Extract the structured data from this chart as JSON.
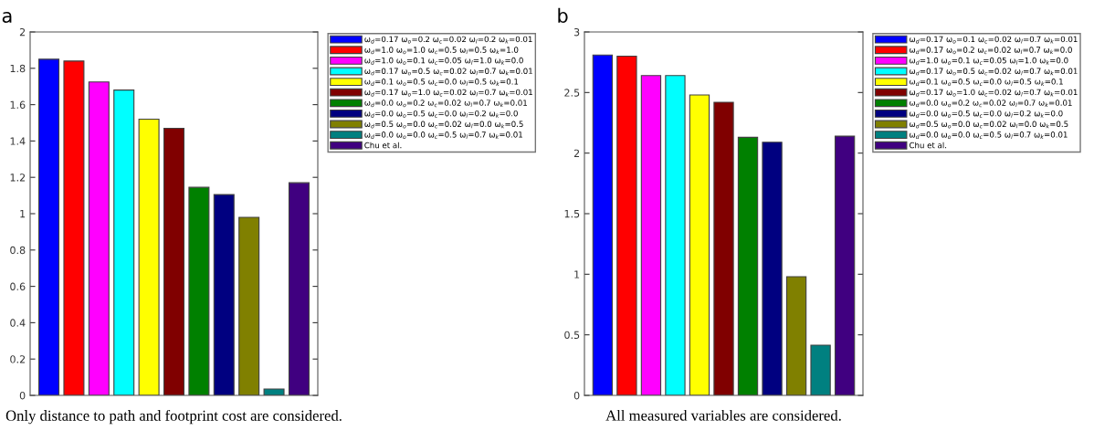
{
  "chart_data": [
    {
      "type": "bar",
      "title": "a",
      "categories": [
        null,
        null,
        null,
        null,
        null,
        null,
        null,
        null,
        null,
        null,
        null
      ],
      "series": [
        {
          "name": "ω$_{d}$=0.17 ω$_{o}$=0.2 ω$_{c}$=0.02 ω$_{l}$=0.2 ω$_{k}$=0.01",
          "color": "#0000ff",
          "values": [
            1.85,
            null,
            null,
            null,
            null,
            null,
            null,
            null,
            null,
            null,
            null
          ]
        },
        {
          "name": "ω$_{d}$=1.0 ω$_{o}$=1.0 ω$_{c}$=0.5 ω$_{l}$=0.5 ω$_{k}$=1.0",
          "color": "#ff0000",
          "values": [
            null,
            1.84,
            null,
            null,
            null,
            null,
            null,
            null,
            null,
            null,
            null
          ]
        },
        {
          "name": "ω$_{d}$=1.0 ω$_{o}$=0.1 ω$_{c}$=0.05 ω$_{l}$=1.0 ω$_{k}$=0.0",
          "color": "#ff00ff",
          "values": [
            null,
            null,
            1.725,
            null,
            null,
            null,
            null,
            null,
            null,
            null,
            null
          ]
        },
        {
          "name": "ω$_{d}$=0.17 ω$_{o}$=0.5 ω$_{c}$=0.02 ω$_{l}$=0.7 ω$_{k}$=0.01",
          "color": "#00ffff",
          "values": [
            null,
            null,
            null,
            1.68,
            null,
            null,
            null,
            null,
            null,
            null,
            null
          ]
        },
        {
          "name": "ω$_{d}$=0.1 ω$_{o}$=0.5 ω$_{c}$=0.0 ω$_{l}$=0.5 ω$_{k}$=0.1",
          "color": "#ffff00",
          "values": [
            null,
            null,
            null,
            null,
            1.52,
            null,
            null,
            null,
            null,
            null,
            null
          ]
        },
        {
          "name": "ω$_{d}$=0.17 ω$_{o}$=1.0 ω$_{c}$=0.02 ω$_{l}$=0.7 ω$_{k}$=0.01",
          "color": "#800000",
          "values": [
            null,
            null,
            null,
            null,
            null,
            1.47,
            null,
            null,
            null,
            null,
            null
          ]
        },
        {
          "name": "ω$_{d}$=0.0 ω$_{o}$=0.2 ω$_{c}$=0.02 ω$_{l}$=0.7 ω$_{k}$=0.01",
          "color": "#008000",
          "values": [
            null,
            null,
            null,
            null,
            null,
            null,
            1.145,
            null,
            null,
            null,
            null
          ]
        },
        {
          "name": "ω$_{d}$=0.0 ω$_{o}$=0.5 ω$_{c}$=0.0 ω$_{l}$=0.2 ω$_{k}$=0.0",
          "color": "#000080",
          "values": [
            null,
            null,
            null,
            null,
            null,
            null,
            null,
            1.105,
            null,
            null,
            null
          ]
        },
        {
          "name": "ω$_{d}$=0.5 ω$_{o}$=0.0 ω$_{c}$=0.02 ω$_{l}$=0.0 ω$_{k}$=0.5",
          "color": "#808000",
          "values": [
            null,
            null,
            null,
            null,
            null,
            null,
            null,
            null,
            0.98,
            null,
            null
          ]
        },
        {
          "name": "ω$_{d}$=0.0 ω$_{o}$=0.0 ω$_{c}$=0.5 ω$_{l}$=0.7 ω$_{k}$=0.01",
          "color": "#008080",
          "values": [
            null,
            null,
            null,
            null,
            null,
            null,
            null,
            null,
            null,
            0.035,
            null
          ]
        },
        {
          "name": "Chu et al.",
          "color": "#400080",
          "values": [
            null,
            null,
            null,
            null,
            null,
            null,
            null,
            null,
            null,
            null,
            1.17
          ]
        }
      ],
      "ylim": [
        0,
        2
      ],
      "yticks": [
        0,
        0.2,
        0.4,
        0.6,
        0.8,
        1,
        1.2,
        1.4,
        1.6,
        1.8,
        2
      ],
      "grid": false,
      "legend": "right",
      "annotations": [
        "Only distance to path and footprint cost are considered."
      ]
    },
    {
      "type": "bar",
      "title": "b",
      "categories": [
        null,
        null,
        null,
        null,
        null,
        null,
        null,
        null,
        null,
        null,
        null
      ],
      "series": [
        {
          "name": "ω$_{d}$=0.17 ω$_{o}$=0.1 ω$_{c}$=0.02 ω$_{l}$=0.7 ω$_{k}$=0.01",
          "color": "#0000ff",
          "values": [
            2.81,
            null,
            null,
            null,
            null,
            null,
            null,
            null,
            null,
            null,
            null
          ]
        },
        {
          "name": "ω$_{d}$=0.17 ω$_{o}$=0.2 ω$_{c}$=0.02 ω$_{l}$=0.7 ω$_{k}$=0.0",
          "color": "#ff0000",
          "values": [
            null,
            2.8,
            null,
            null,
            null,
            null,
            null,
            null,
            null,
            null,
            null
          ]
        },
        {
          "name": "ω$_{d}$=1.0 ω$_{o}$=0.1 ω$_{c}$=0.05 ω$_{l}$=1.0 ω$_{k}$=0.0",
          "color": "#ff00ff",
          "values": [
            null,
            null,
            2.64,
            null,
            null,
            null,
            null,
            null,
            null,
            null,
            null
          ]
        },
        {
          "name": "ω$_{d}$=0.17 ω$_{o}$=0.5 ω$_{c}$=0.02 ω$_{l}$=0.7 ω$_{k}$=0.01",
          "color": "#00ffff",
          "values": [
            null,
            null,
            null,
            2.64,
            null,
            null,
            null,
            null,
            null,
            null,
            null
          ]
        },
        {
          "name": "ω$_{d}$=0.1 ω$_{o}$=0.5 ω$_{c}$=0.0 ω$_{l}$=0.5 ω$_{k}$=0.1",
          "color": "#ffff00",
          "values": [
            null,
            null,
            null,
            null,
            2.48,
            null,
            null,
            null,
            null,
            null,
            null
          ]
        },
        {
          "name": "ω$_{d}$=0.17 ω$_{o}$=1.0 ω$_{c}$=0.02 ω$_{l}$=0.7 ω$_{k}$=0.01",
          "color": "#800000",
          "values": [
            null,
            null,
            null,
            null,
            null,
            2.42,
            null,
            null,
            null,
            null,
            null
          ]
        },
        {
          "name": "ω$_{d}$=0.0 ω$_{o}$=0.2 ω$_{c}$=0.02 ω$_{l}$=0.7 ω$_{k}$=0.01",
          "color": "#008000",
          "values": [
            null,
            null,
            null,
            null,
            null,
            null,
            2.13,
            null,
            null,
            null,
            null
          ]
        },
        {
          "name": "ω$_{d}$=0.0 ω$_{o}$=0.5 ω$_{c}$=0.0 ω$_{l}$=0.2 ω$_{k}$=0.0",
          "color": "#000080",
          "values": [
            null,
            null,
            null,
            null,
            null,
            null,
            null,
            2.09,
            null,
            null,
            null
          ]
        },
        {
          "name": "ω$_{d}$=0.5 ω$_{o}$=0.0 ω$_{c}$=0.02 ω$_{l}$=0.0 ω$_{k}$=0.5",
          "color": "#808000",
          "values": [
            null,
            null,
            null,
            null,
            null,
            null,
            null,
            null,
            0.98,
            null,
            null
          ]
        },
        {
          "name": "ω$_{d}$=0.0 ω$_{o}$=0.0 ω$_{c}$=0.5 ω$_{l}$=0.7 ω$_{k}$=0.01",
          "color": "#008080",
          "values": [
            null,
            null,
            null,
            null,
            null,
            null,
            null,
            null,
            null,
            0.415,
            null
          ]
        },
        {
          "name": "Chu et al.",
          "color": "#400080",
          "values": [
            null,
            null,
            null,
            null,
            null,
            null,
            null,
            null,
            null,
            null,
            2.14
          ]
        }
      ],
      "ylim": [
        0,
        3
      ],
      "yticks": [
        0,
        0.5,
        1,
        1.5,
        2,
        2.5,
        3
      ],
      "grid": false,
      "legend": "right",
      "annotations": [
        "All measured variables are considered."
      ]
    }
  ]
}
